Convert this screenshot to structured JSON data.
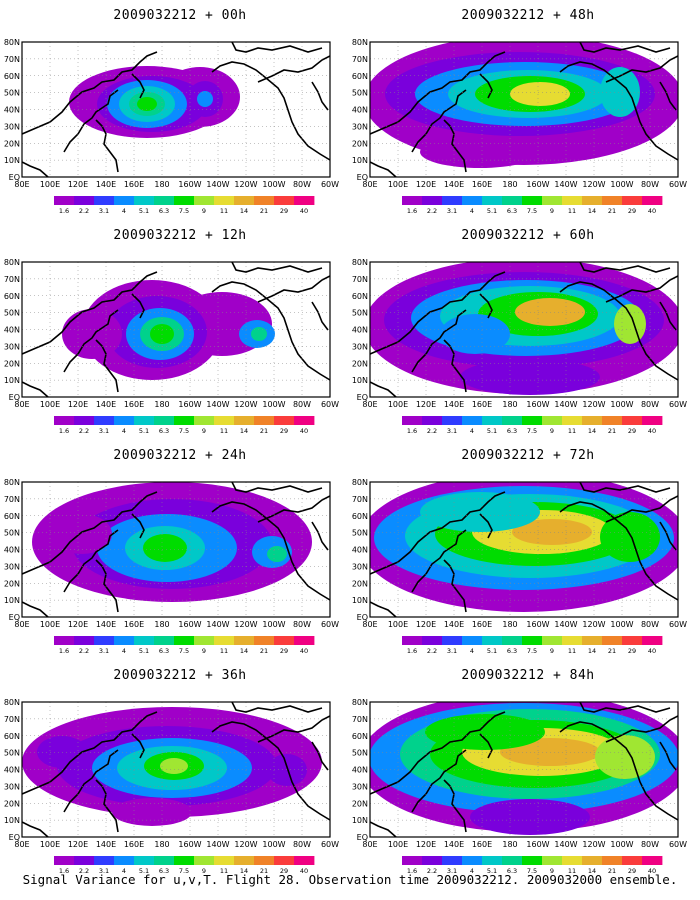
{
  "panels": [
    {
      "title": "2009032212 + 00h",
      "lead": "00h"
    },
    {
      "title": "2009032212 + 12h",
      "lead": "12h"
    },
    {
      "title": "2009032212 + 24h",
      "lead": "24h"
    },
    {
      "title": "2009032212 + 36h",
      "lead": "36h"
    },
    {
      "title": "2009032212 + 48h",
      "lead": "48h"
    },
    {
      "title": "2009032212 + 60h",
      "lead": "60h"
    },
    {
      "title": "2009032212 + 72h",
      "lead": "72h"
    },
    {
      "title": "2009032212 + 84h",
      "lead": "84h"
    }
  ],
  "lat_labels": [
    "80N",
    "70N",
    "60N",
    "50N",
    "40N",
    "30N",
    "20N",
    "10N",
    "EQ"
  ],
  "lon_labels": [
    "80E",
    "100E",
    "120E",
    "140E",
    "160E",
    "180",
    "160W",
    "140W",
    "120W",
    "100W",
    "80W",
    "60W"
  ],
  "colorbar": {
    "levels": [
      "1.6",
      "2.2",
      "3.1",
      "4",
      "5.1",
      "6.3",
      "7.5",
      "9",
      "11",
      "14",
      "21",
      "29",
      "40"
    ],
    "colors": [
      "#a000c8",
      "#7a00dc",
      "#2f3cff",
      "#0a8cff",
      "#00c8c8",
      "#00d28c",
      "#00dc00",
      "#a0e632",
      "#e6dc32",
      "#e6af2d",
      "#f08228",
      "#fa3c3c",
      "#f00082"
    ]
  },
  "caption": "Signal Variance for u,v,T. Flight 28. Observation time 2009032212. 2009032000 ensemble.",
  "map_data": {
    "domain": {
      "lon_range": [
        "80E",
        "60W"
      ],
      "lat_range": [
        "EQ",
        "80N"
      ]
    },
    "fields": [
      {
        "lead": "00h",
        "max_level": "9",
        "extent": "localized"
      },
      {
        "lead": "12h",
        "max_level": "7.5",
        "extent": "localized"
      },
      {
        "lead": "24h",
        "max_level": "7.5",
        "extent": "spreading"
      },
      {
        "lead": "36h",
        "max_level": "9",
        "extent": "spreading"
      },
      {
        "lead": "48h",
        "max_level": "14",
        "extent": "wide"
      },
      {
        "lead": "60h",
        "max_level": "14",
        "extent": "wide"
      },
      {
        "lead": "72h",
        "max_level": "14",
        "extent": "wide"
      },
      {
        "lead": "84h",
        "max_level": "14",
        "extent": "wide"
      }
    ]
  }
}
